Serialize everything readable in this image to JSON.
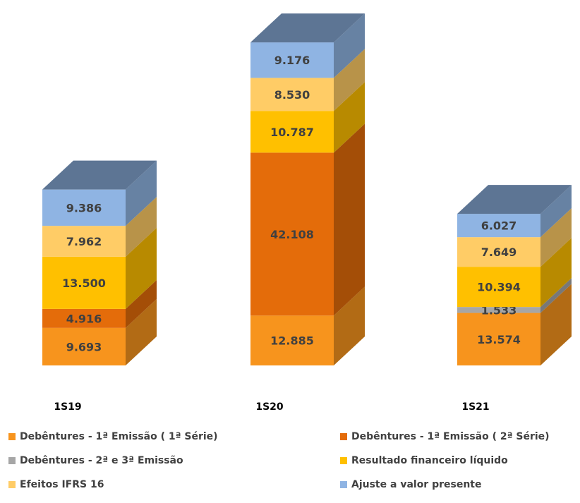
{
  "chart_data": {
    "type": "bar",
    "stacked": true,
    "style": "3d-column",
    "categories": [
      "1S19",
      "1S20",
      "1S21"
    ],
    "series": [
      {
        "name": "Debêntures - 1ª Emissão ( 1ª Série)",
        "color": "#f7941d",
        "values": [
          9693,
          12885,
          13574
        ],
        "labels": [
          "9.693",
          "12.885",
          "13.574"
        ]
      },
      {
        "name": "Debêntures - 1ª Emissão ( 2ª Série)",
        "color": "#e46c0a",
        "values": [
          4916,
          42108,
          0
        ],
        "labels": [
          "4.916",
          "42.108",
          ""
        ]
      },
      {
        "name": "Debêntures - 2ª e 3ª Emissão",
        "color": "#a6a6a6",
        "values": [
          0,
          0,
          1533
        ],
        "labels": [
          "",
          "",
          "1.533"
        ]
      },
      {
        "name": "Resultado financeiro líquido",
        "color": "#ffc000",
        "values": [
          13500,
          10787,
          10394
        ],
        "labels": [
          "13.500",
          "10.787",
          "10.394"
        ]
      },
      {
        "name": "Efeitos IFRS  16",
        "color": "#ffcc66",
        "values": [
          7962,
          8530,
          7649
        ],
        "labels": [
          "7.962",
          "8.530",
          "7.649"
        ]
      },
      {
        "name": "Ajuste a valor presente",
        "color": "#8fb4e3",
        "values": [
          9386,
          9176,
          6027
        ],
        "labels": [
          "9.386",
          "9.176",
          "6.027"
        ]
      }
    ],
    "legend_position": "bottom",
    "grid": false
  }
}
